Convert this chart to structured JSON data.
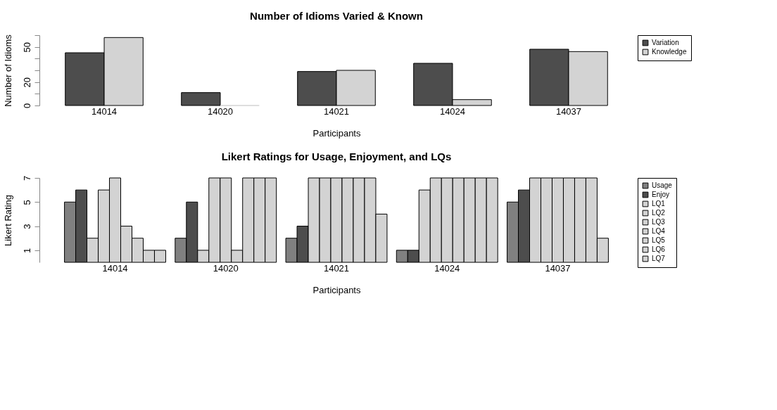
{
  "chart_data": [
    {
      "type": "bar",
      "title": "Number of Idioms Varied & Known",
      "xlabel": "Participants",
      "ylabel": "Number of Idioms",
      "categories": [
        "14014",
        "14020",
        "14021",
        "14024",
        "14037"
      ],
      "series": [
        {
          "name": "Variation",
          "color": "#4d4d4d",
          "values": [
            45,
            11,
            29,
            36,
            48
          ]
        },
        {
          "name": "Knowledge",
          "color": "#d3d3d3",
          "values": [
            58,
            0,
            30,
            5,
            46
          ]
        }
      ],
      "ylim": [
        0,
        60
      ],
      "yticks": [
        0,
        {
          "value": 10,
          "label": null
        },
        20,
        {
          "value": 30,
          "label": null
        },
        {
          "value": 40,
          "label": null
        },
        50,
        {
          "value": 60,
          "label": null
        }
      ],
      "legend": "right",
      "grid": false
    },
    {
      "type": "bar",
      "title": "Likert Ratings for Usage, Enjoyment, and LQs",
      "xlabel": "Participants",
      "ylabel": "Likert Rating",
      "categories": [
        "14014",
        "14020",
        "14021",
        "14024",
        "14037"
      ],
      "series": [
        {
          "name": "Usage",
          "color": "#808080",
          "values": [
            5,
            2,
            2,
            1,
            5
          ]
        },
        {
          "name": "Enjoy",
          "color": "#4d4d4d",
          "values": [
            6,
            5,
            3,
            1,
            6
          ]
        },
        {
          "name": "LQ1",
          "color": "#d3d3d3",
          "values": [
            2,
            1,
            7,
            6,
            7
          ]
        },
        {
          "name": "LQ2",
          "color": "#d3d3d3",
          "values": [
            6,
            7,
            7,
            7,
            7
          ]
        },
        {
          "name": "LQ3",
          "color": "#d3d3d3",
          "values": [
            7,
            7,
            7,
            7,
            7
          ]
        },
        {
          "name": "LQ4",
          "color": "#d3d3d3",
          "values": [
            3,
            1,
            7,
            7,
            7
          ]
        },
        {
          "name": "LQ5",
          "color": "#d3d3d3",
          "values": [
            2,
            7,
            7,
            7,
            7
          ]
        },
        {
          "name": "LQ6",
          "color": "#d3d3d3",
          "values": [
            1,
            7,
            7,
            7,
            7
          ]
        },
        {
          "name": "LQ7",
          "color": "#d3d3d3",
          "values": [
            1,
            7,
            4,
            7,
            2
          ]
        }
      ],
      "ylim": [
        0,
        7
      ],
      "yticks": [
        1,
        3,
        5,
        7
      ],
      "legend": "right",
      "grid": false
    }
  ]
}
